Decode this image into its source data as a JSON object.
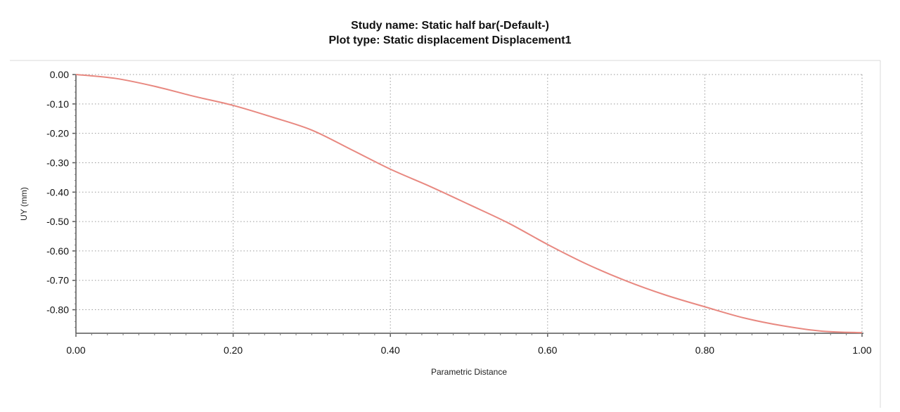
{
  "chart_data": {
    "type": "line",
    "title": "Study name: Static half bar(-Default-)",
    "subtitle": "Plot type: Static displacement Displacement1",
    "xlabel": "Parametric Distance",
    "ylabel": "UY (mm)",
    "xlim": [
      0.0,
      1.0
    ],
    "ylim": [
      -0.88,
      0.0
    ],
    "x_ticks": [
      "0.00",
      "0.20",
      "0.40",
      "0.60",
      "0.80",
      "1.00"
    ],
    "y_ticks": [
      "0.00",
      "-0.10",
      "-0.20",
      "-0.30",
      "-0.40",
      "-0.50",
      "-0.60",
      "-0.70",
      "-0.80"
    ],
    "grid": true,
    "series": [
      {
        "color": "#e88880",
        "x": [
          0.0,
          0.05,
          0.1,
          0.15,
          0.2,
          0.25,
          0.3,
          0.35,
          0.4,
          0.45,
          0.5,
          0.55,
          0.6,
          0.65,
          0.7,
          0.75,
          0.8,
          0.85,
          0.9,
          0.95,
          1.0
        ],
        "y": [
          0.0,
          -0.013,
          -0.04,
          -0.074,
          -0.105,
          -0.145,
          -0.189,
          -0.255,
          -0.322,
          -0.38,
          -0.442,
          -0.505,
          -0.578,
          -0.645,
          -0.702,
          -0.75,
          -0.79,
          -0.828,
          -0.855,
          -0.873,
          -0.878
        ]
      }
    ]
  }
}
